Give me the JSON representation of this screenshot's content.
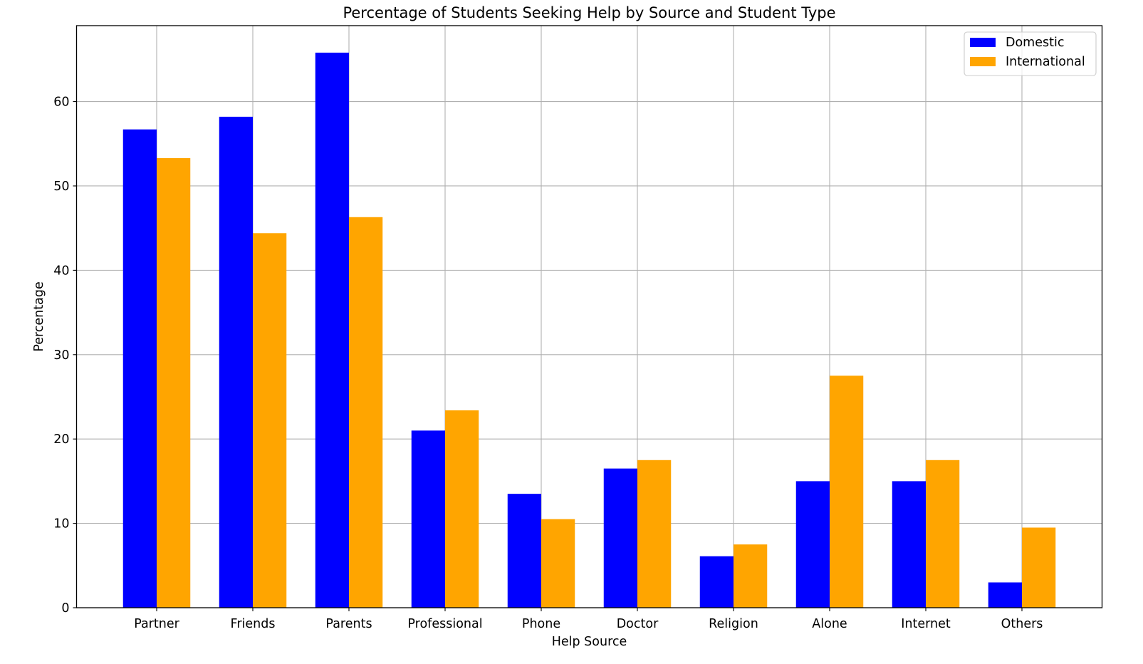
{
  "chart_data": {
    "type": "bar",
    "title": "Percentage of Students Seeking Help by Source and Student Type",
    "xlabel": "Help Source",
    "ylabel": "Percentage",
    "categories": [
      "Partner",
      "Friends",
      "Parents",
      "Professional",
      "Phone",
      "Doctor",
      "Religion",
      "Alone",
      "Internet",
      "Others"
    ],
    "series": [
      {
        "name": "Domestic",
        "color": "#0000ff",
        "values": [
          56.7,
          58.2,
          65.8,
          21.0,
          13.5,
          16.5,
          6.1,
          15.0,
          15.0,
          3.0
        ]
      },
      {
        "name": "International",
        "color": "#ffa500",
        "values": [
          53.3,
          44.4,
          46.3,
          23.4,
          10.5,
          17.5,
          7.5,
          27.5,
          17.5,
          9.5
        ]
      }
    ],
    "ylim": [
      0,
      69
    ],
    "yticks": [
      "0",
      "10",
      "20",
      "30",
      "40",
      "50",
      "60"
    ],
    "grid": true,
    "legend_position": "top-right"
  }
}
